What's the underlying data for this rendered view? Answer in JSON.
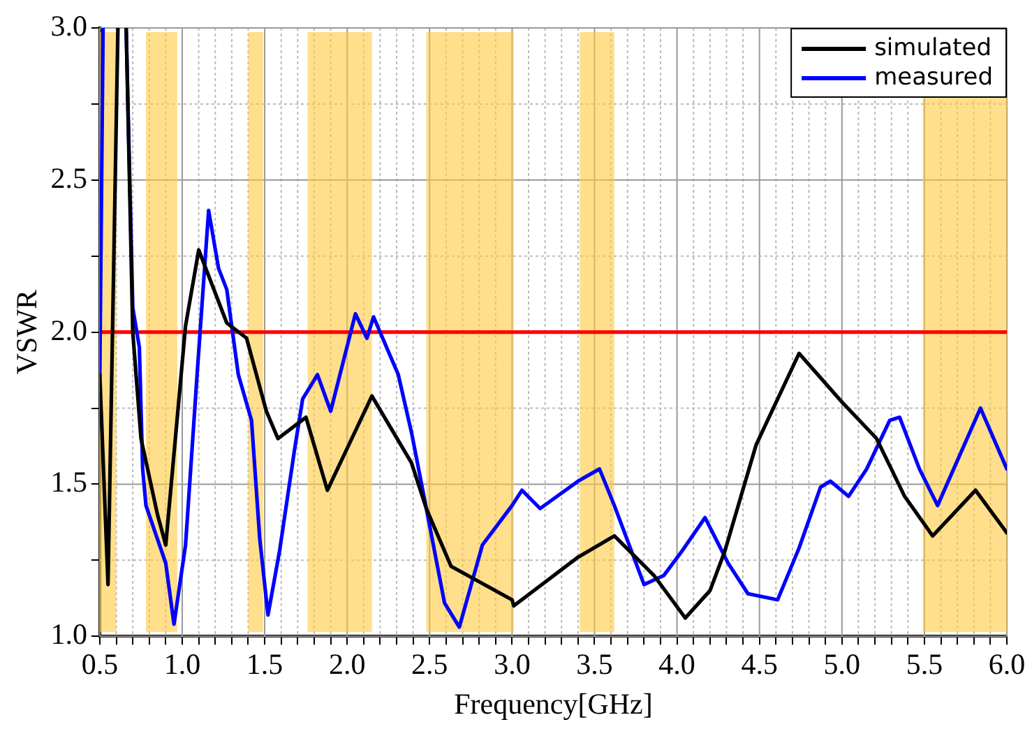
{
  "chart_data": {
    "type": "line",
    "xlabel": "Frequency[GHz]",
    "ylabel": "VSWR",
    "xlim": [
      0.5,
      6.0
    ],
    "ylim": [
      1.0,
      3.0
    ],
    "xticks": [
      {
        "value": 0.5,
        "label": "0.5"
      },
      {
        "value": 0.6,
        "label": null
      },
      {
        "value": 0.7,
        "label": null
      },
      {
        "value": 0.8,
        "label": null
      },
      {
        "value": 0.9,
        "label": null
      },
      {
        "value": 1.0,
        "label": "1.0"
      },
      {
        "value": 1.1,
        "label": null
      },
      {
        "value": 1.2,
        "label": null
      },
      {
        "value": 1.3,
        "label": null
      },
      {
        "value": 1.4,
        "label": null
      },
      {
        "value": 1.5,
        "label": "1.5"
      },
      {
        "value": 1.6,
        "label": null
      },
      {
        "value": 1.7,
        "label": null
      },
      {
        "value": 1.8,
        "label": null
      },
      {
        "value": 1.9,
        "label": null
      },
      {
        "value": 2.0,
        "label": "2.0"
      },
      {
        "value": 2.1,
        "label": null
      },
      {
        "value": 2.2,
        "label": null
      },
      {
        "value": 2.3,
        "label": null
      },
      {
        "value": 2.4,
        "label": null
      },
      {
        "value": 2.5,
        "label": "2.5"
      },
      {
        "value": 2.6,
        "label": null
      },
      {
        "value": 2.7,
        "label": null
      },
      {
        "value": 2.8,
        "label": null
      },
      {
        "value": 2.9,
        "label": null
      },
      {
        "value": 3.0,
        "label": "3.0"
      },
      {
        "value": 3.1,
        "label": null
      },
      {
        "value": 3.2,
        "label": null
      },
      {
        "value": 3.3,
        "label": null
      },
      {
        "value": 3.4,
        "label": null
      },
      {
        "value": 3.5,
        "label": "3.5"
      },
      {
        "value": 3.6,
        "label": null
      },
      {
        "value": 3.7,
        "label": null
      },
      {
        "value": 3.8,
        "label": null
      },
      {
        "value": 3.9,
        "label": null
      },
      {
        "value": 4.0,
        "label": "4.0"
      },
      {
        "value": 4.1,
        "label": null
      },
      {
        "value": 4.2,
        "label": null
      },
      {
        "value": 4.3,
        "label": null
      },
      {
        "value": 4.4,
        "label": null
      },
      {
        "value": 4.5,
        "label": "4.5"
      },
      {
        "value": 4.6,
        "label": null
      },
      {
        "value": 4.7,
        "label": null
      },
      {
        "value": 4.8,
        "label": null
      },
      {
        "value": 4.9,
        "label": null
      },
      {
        "value": 5.0,
        "label": "5.0"
      },
      {
        "value": 5.1,
        "label": null
      },
      {
        "value": 5.2,
        "label": null
      },
      {
        "value": 5.3,
        "label": null
      },
      {
        "value": 5.4,
        "label": null
      },
      {
        "value": 5.5,
        "label": "5.5"
      },
      {
        "value": 5.6,
        "label": null
      },
      {
        "value": 5.7,
        "label": null
      },
      {
        "value": 5.8,
        "label": null
      },
      {
        "value": 5.9,
        "label": null
      },
      {
        "value": 6.0,
        "label": "6.0"
      }
    ],
    "yticks": [
      {
        "value": 1.0,
        "label": "1.0"
      },
      {
        "value": 1.25,
        "label": null
      },
      {
        "value": 1.5,
        "label": "1.5"
      },
      {
        "value": 1.75,
        "label": null
      },
      {
        "value": 2.0,
        "label": "2.0"
      },
      {
        "value": 2.25,
        "label": null
      },
      {
        "value": 2.5,
        "label": "2.5"
      },
      {
        "value": 2.75,
        "label": null
      },
      {
        "value": 3.0,
        "label": "3.0"
      }
    ],
    "grid": true,
    "legend": "top right",
    "line_style": "solid",
    "marker": "none",
    "series": [
      {
        "name": "simulated",
        "color": "#000000",
        "x": [
          0.5,
          0.55,
          0.61,
          0.63,
          0.66,
          0.7,
          0.75,
          0.85,
          0.9,
          1.02,
          1.1,
          1.27,
          1.39,
          1.51,
          1.58,
          1.75,
          1.88,
          2.15,
          2.39,
          2.48,
          2.63,
          3.0,
          3.01,
          3.4,
          3.62,
          3.86,
          4.05,
          4.2,
          4.29,
          4.48,
          4.74,
          5.0,
          5.21,
          5.38,
          5.55,
          5.81,
          6.0
        ],
        "values": [
          1.86,
          1.17,
          3.0,
          null,
          3.0,
          2.0,
          1.65,
          1.4,
          1.3,
          2.02,
          2.27,
          2.03,
          1.98,
          1.74,
          1.65,
          1.72,
          1.48,
          1.79,
          1.57,
          1.42,
          1.23,
          1.12,
          1.1,
          1.26,
          1.33,
          1.2,
          1.06,
          1.15,
          1.28,
          1.63,
          1.93,
          1.77,
          1.65,
          1.46,
          1.33,
          1.48,
          1.34
        ]
      },
      {
        "name": "measured",
        "color": "#0000ff",
        "x": [
          0.5,
          0.52,
          0.58,
          0.66,
          0.7,
          0.74,
          0.76,
          0.78,
          0.9,
          0.95,
          1.02,
          1.09,
          1.16,
          1.22,
          1.27,
          1.34,
          1.42,
          1.47,
          1.52,
          1.59,
          1.68,
          1.73,
          1.82,
          1.9,
          2.05,
          2.12,
          2.16,
          2.31,
          2.39,
          2.48,
          2.59,
          2.68,
          2.82,
          3.0,
          3.06,
          3.17,
          3.4,
          3.53,
          3.62,
          3.8,
          3.92,
          4.03,
          4.17,
          4.31,
          4.43,
          4.61,
          4.74,
          4.87,
          4.93,
          5.04,
          5.15,
          5.29,
          5.35,
          5.47,
          5.58,
          5.84,
          6.0
        ],
        "values": [
          1.85,
          3.0,
          null,
          3.0,
          2.08,
          1.95,
          1.55,
          1.43,
          1.24,
          1.04,
          1.3,
          1.86,
          2.4,
          2.21,
          2.14,
          1.86,
          1.71,
          1.32,
          1.07,
          1.28,
          1.61,
          1.78,
          1.86,
          1.74,
          2.06,
          1.98,
          2.05,
          1.86,
          1.67,
          1.42,
          1.11,
          1.03,
          1.3,
          1.43,
          1.48,
          1.42,
          1.51,
          1.55,
          1.43,
          1.17,
          1.2,
          1.28,
          1.39,
          1.24,
          1.14,
          1.12,
          1.29,
          1.49,
          1.51,
          1.46,
          1.55,
          1.71,
          1.72,
          1.55,
          1.43,
          1.75,
          1.55
        ]
      }
    ],
    "ref_lines": [
      {
        "axis": "y",
        "value": 2.0,
        "color": "#ff0000"
      }
    ],
    "bands": [
      {
        "axis": "x",
        "from": 0.5,
        "to": 0.6,
        "color": "#ffc940"
      },
      {
        "axis": "x",
        "from": 0.78,
        "to": 0.97,
        "color": "#ffc940"
      },
      {
        "axis": "x",
        "from": 1.4,
        "to": 1.49,
        "color": "#ffc940"
      },
      {
        "axis": "x",
        "from": 1.76,
        "to": 2.15,
        "color": "#ffc940"
      },
      {
        "axis": "x",
        "from": 2.48,
        "to": 3.01,
        "color": "#ffc940"
      },
      {
        "axis": "x",
        "from": 3.41,
        "to": 3.62,
        "color": "#ffc940"
      },
      {
        "axis": "x",
        "from": 5.49,
        "to": 6.0,
        "color": "#ffc940"
      }
    ]
  }
}
